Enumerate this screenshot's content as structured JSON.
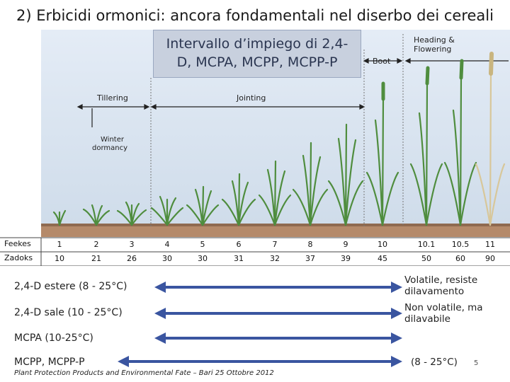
{
  "title": "2) Erbicidi ormonici: ancora fondamentali nel diserbo dei cereali",
  "callout": {
    "line1": "Intervallo d’impiego di 2,4-",
    "line2": "D, MCPA, MCPP, MCPP-P"
  },
  "stages": {
    "tillering": "Tillering",
    "winter_line1": "Winter",
    "winter_line2": "dormancy",
    "jointing": "Jointing",
    "boot": "Boot",
    "heading_line1": "Heading &",
    "heading_line2": "Flowering"
  },
  "scale": {
    "feekes_label": "Feekes",
    "zadoks_label": "Zadoks",
    "feekes": [
      "1",
      "2",
      "3",
      "4",
      "5",
      "6",
      "7",
      "8",
      "9",
      "10",
      "10.1",
      "10.5",
      "11"
    ],
    "zadoks": [
      "10",
      "21",
      "26",
      "30",
      "30",
      "31",
      "32",
      "37",
      "39",
      "45",
      "50",
      "60",
      "90"
    ]
  },
  "herbicides": [
    {
      "label": "2,4-D estere (8 - 25°C)"
    },
    {
      "label": "2,4-D sale (10 - 25°C)"
    },
    {
      "label": "MCPA (10-25°C)"
    },
    {
      "label": "MCPP, MCPP-P"
    }
  ],
  "notes": {
    "volatile_line1": "Volatile, resiste",
    "volatile_line2": "dilavamento",
    "nonvolatile_line1": "Non volatile, ma",
    "nonvolatile_line2": "dilavabile",
    "temp_range": "(8 - 25°C)"
  },
  "footer": "Plant Protection Products and Environmental Fate – Bari 25 Ottobre 2012",
  "page_number": "5",
  "colors": {
    "arrow": "#3a55a0",
    "plant": "#4f8d3e",
    "sky": "#dce7f3",
    "soil": "#b58a6a"
  }
}
